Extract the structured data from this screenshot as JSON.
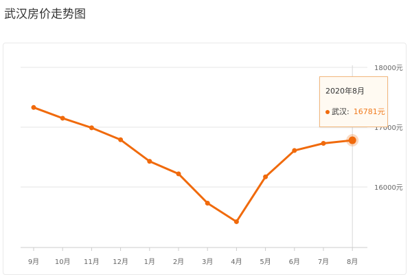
{
  "page": {
    "title": "武汉房价走势图"
  },
  "tooltip": {
    "date": "2020年8月",
    "series_label": "武汉:",
    "value_label": "16781元"
  },
  "colors": {
    "line": "#f06a0c",
    "grid": "#e6e6e6",
    "axis_text": "#666666",
    "tooltip_value": "#f07b1e"
  },
  "chart_data": {
    "type": "line",
    "title": "",
    "xlabel": "",
    "ylabel": "",
    "categories": [
      "9月",
      "10月",
      "11月",
      "12月",
      "1月",
      "2月",
      "3月",
      "4月",
      "5月",
      "6月",
      "7月",
      "8月"
    ],
    "series": [
      {
        "name": "武汉",
        "values": [
          17330,
          17150,
          16990,
          16790,
          16430,
          16220,
          15730,
          15420,
          16170,
          16610,
          16730,
          16781
        ]
      }
    ],
    "y_ticks": [
      {
        "value": 16000,
        "label": "16000元"
      },
      {
        "value": 17000,
        "label": "17000元"
      },
      {
        "value": 18000,
        "label": "18000元"
      }
    ],
    "ylim": [
      15000,
      18000
    ],
    "grid": true,
    "highlighted_index": 11
  }
}
